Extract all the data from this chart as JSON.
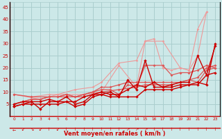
{
  "xlabel": "Vent moyen/en rafales ( km/h )",
  "xlim": [
    -0.5,
    23.5
  ],
  "ylim": [
    0,
    47
  ],
  "yticks": [
    0,
    5,
    10,
    15,
    20,
    25,
    30,
    35,
    40,
    45
  ],
  "xticks": [
    0,
    1,
    2,
    3,
    4,
    5,
    6,
    7,
    8,
    9,
    10,
    11,
    12,
    13,
    14,
    15,
    16,
    17,
    18,
    19,
    20,
    21,
    22,
    23
  ],
  "bg_color": "#cce8e8",
  "grid_color": "#aacece",
  "line_color_dark": "#cc0000",
  "line_color_mid": "#dd5555",
  "line_color_light": "#ee9999",
  "lines_light": [
    [
      [
        0,
        9
      ],
      [
        3,
        7
      ],
      [
        5,
        9
      ],
      [
        7,
        11
      ],
      [
        9,
        12
      ],
      [
        10,
        14
      ],
      [
        12,
        22
      ],
      [
        14,
        23
      ],
      [
        15,
        31
      ],
      [
        16,
        32
      ],
      [
        17,
        20
      ],
      [
        18,
        19
      ],
      [
        19,
        20
      ],
      [
        20,
        19
      ],
      [
        21,
        36
      ],
      [
        22,
        43
      ]
    ],
    [
      [
        0,
        9
      ],
      [
        2,
        8
      ],
      [
        4,
        9
      ],
      [
        6,
        9
      ],
      [
        8,
        9
      ],
      [
        10,
        10
      ],
      [
        12,
        21
      ],
      [
        14,
        12
      ],
      [
        15,
        31
      ],
      [
        17,
        31
      ],
      [
        19,
        20
      ],
      [
        20,
        19
      ],
      [
        21,
        25
      ],
      [
        22,
        43
      ]
    ]
  ],
  "lines_mid": [
    [
      [
        0,
        5
      ],
      [
        1,
        6
      ],
      [
        2,
        7
      ],
      [
        3,
        7
      ],
      [
        4,
        8
      ],
      [
        5,
        8
      ],
      [
        6,
        9
      ],
      [
        7,
        8
      ],
      [
        8,
        9
      ],
      [
        9,
        10
      ],
      [
        10,
        11
      ],
      [
        11,
        11
      ],
      [
        12,
        9
      ],
      [
        13,
        13
      ],
      [
        14,
        12
      ],
      [
        15,
        13
      ],
      [
        16,
        13
      ],
      [
        17,
        13
      ],
      [
        18,
        13
      ],
      [
        19,
        14
      ],
      [
        20,
        15
      ],
      [
        21,
        14
      ],
      [
        22,
        19
      ],
      [
        23,
        20
      ]
    ],
    [
      [
        0,
        5
      ],
      [
        1,
        6
      ],
      [
        2,
        7
      ],
      [
        3,
        7
      ],
      [
        4,
        8
      ],
      [
        5,
        8
      ],
      [
        6,
        9
      ],
      [
        7,
        8
      ],
      [
        8,
        9
      ],
      [
        9,
        10
      ],
      [
        10,
        12
      ],
      [
        11,
        12
      ],
      [
        12,
        13
      ],
      [
        13,
        14
      ],
      [
        14,
        14
      ],
      [
        15,
        14
      ],
      [
        16,
        14
      ],
      [
        17,
        14
      ],
      [
        18,
        14
      ],
      [
        19,
        14
      ],
      [
        20,
        15
      ],
      [
        21,
        16
      ],
      [
        22,
        20
      ],
      [
        23,
        21
      ]
    ],
    [
      [
        0,
        9
      ],
      [
        2,
        8
      ],
      [
        4,
        8
      ],
      [
        6,
        8
      ],
      [
        8,
        8
      ],
      [
        10,
        10
      ],
      [
        12,
        11
      ],
      [
        14,
        12
      ],
      [
        15,
        21
      ],
      [
        16,
        21
      ],
      [
        17,
        21
      ],
      [
        18,
        17
      ],
      [
        19,
        18
      ],
      [
        20,
        18
      ],
      [
        21,
        19
      ],
      [
        22,
        21
      ],
      [
        23,
        20
      ]
    ]
  ],
  "lines_dark": [
    [
      [
        0,
        4
      ],
      [
        1,
        5
      ],
      [
        2,
        6
      ],
      [
        3,
        3
      ],
      [
        4,
        6
      ],
      [
        5,
        6
      ],
      [
        6,
        6
      ],
      [
        7,
        4
      ],
      [
        8,
        5
      ],
      [
        9,
        8
      ],
      [
        10,
        9
      ],
      [
        11,
        8
      ],
      [
        12,
        8
      ],
      [
        13,
        15
      ],
      [
        14,
        11
      ],
      [
        15,
        23
      ],
      [
        16,
        12
      ],
      [
        17,
        12
      ],
      [
        18,
        13
      ],
      [
        19,
        14
      ],
      [
        20,
        14
      ],
      [
        21,
        25
      ],
      [
        22,
        17
      ],
      [
        23,
        29
      ]
    ],
    [
      [
        0,
        5
      ],
      [
        1,
        6
      ],
      [
        2,
        6
      ],
      [
        3,
        6
      ],
      [
        4,
        7
      ],
      [
        5,
        6
      ],
      [
        6,
        8
      ],
      [
        7,
        5
      ],
      [
        8,
        6
      ],
      [
        9,
        9
      ],
      [
        10,
        10
      ],
      [
        11,
        9
      ],
      [
        12,
        9
      ],
      [
        13,
        11
      ],
      [
        14,
        13
      ],
      [
        15,
        12
      ],
      [
        16,
        14
      ],
      [
        17,
        12
      ],
      [
        18,
        12
      ],
      [
        19,
        13
      ],
      [
        20,
        13
      ],
      [
        21,
        13
      ],
      [
        22,
        17
      ],
      [
        23,
        18
      ]
    ],
    [
      [
        0,
        4
      ],
      [
        1,
        5
      ],
      [
        2,
        5
      ],
      [
        3,
        5
      ],
      [
        4,
        5
      ],
      [
        5,
        5
      ],
      [
        6,
        6
      ],
      [
        7,
        6
      ],
      [
        8,
        8
      ],
      [
        9,
        9
      ],
      [
        10,
        9
      ],
      [
        11,
        10
      ],
      [
        12,
        8
      ],
      [
        13,
        8
      ],
      [
        14,
        8
      ],
      [
        15,
        11
      ],
      [
        16,
        11
      ],
      [
        17,
        11
      ],
      [
        18,
        11
      ],
      [
        19,
        12
      ],
      [
        20,
        13
      ],
      [
        21,
        14
      ],
      [
        22,
        13
      ],
      [
        23,
        30
      ]
    ]
  ],
  "arrow_symbols": [
    "←",
    "↙",
    "↘",
    "↙",
    "↑",
    "↙",
    "↑",
    "↑",
    "↑",
    "↑",
    "↑",
    "↑",
    "↑",
    "↗",
    "↗",
    "↗",
    "↑",
    "↑",
    "↑",
    "↑",
    "↑",
    "↑",
    "↑",
    "↑"
  ]
}
